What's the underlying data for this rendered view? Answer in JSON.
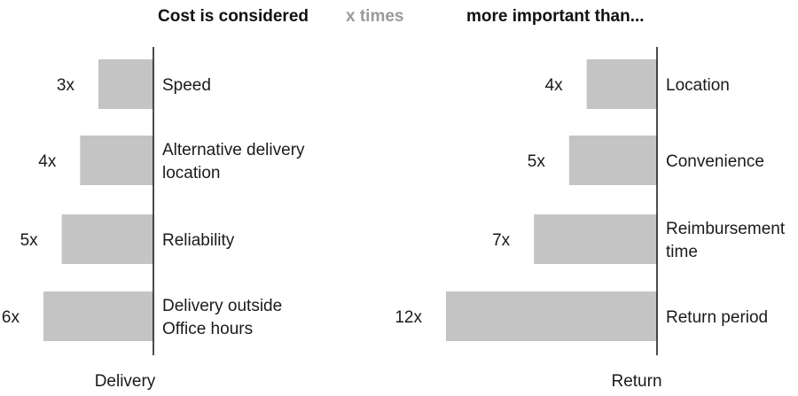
{
  "chart_data": [
    {
      "type": "bar",
      "orientation": "horizontal",
      "direction": "leftward",
      "title": "Delivery",
      "header": {
        "part1": "Cost is considered",
        "part2": "x times",
        "part3": "more important than..."
      },
      "categories": [
        "Speed",
        "Alternative delivery location",
        "Reliability",
        "Delivery outside Office hours"
      ],
      "category_lines": [
        [
          "Speed"
        ],
        [
          "Alternative delivery",
          "location"
        ],
        [
          "Reliability"
        ],
        [
          "Delivery outside",
          "Office hours"
        ]
      ],
      "values": [
        3,
        4,
        5,
        6
      ],
      "value_labels": [
        "3x",
        "4x",
        "5x",
        "6x"
      ],
      "xlim": [
        0,
        6
      ],
      "bar_color": "#c4c4c4"
    },
    {
      "type": "bar",
      "orientation": "horizontal",
      "direction": "leftward",
      "title": "Return",
      "categories": [
        "Location",
        "Convenience",
        "Reimbursement time",
        "Return period"
      ],
      "category_lines": [
        [
          "Location"
        ],
        [
          "Convenience"
        ],
        [
          "Reimbursement",
          "time"
        ],
        [
          "Return period"
        ]
      ],
      "values": [
        4,
        5,
        7,
        12
      ],
      "value_labels": [
        "4x",
        "5x",
        "7x",
        "12x"
      ],
      "xlim": [
        0,
        12
      ],
      "bar_color": "#c4c4c4"
    }
  ],
  "colors": {
    "header_dark": "#111111",
    "header_grey": "#9a9a9a",
    "text": "#1a1a1a",
    "axis": "#111111"
  }
}
